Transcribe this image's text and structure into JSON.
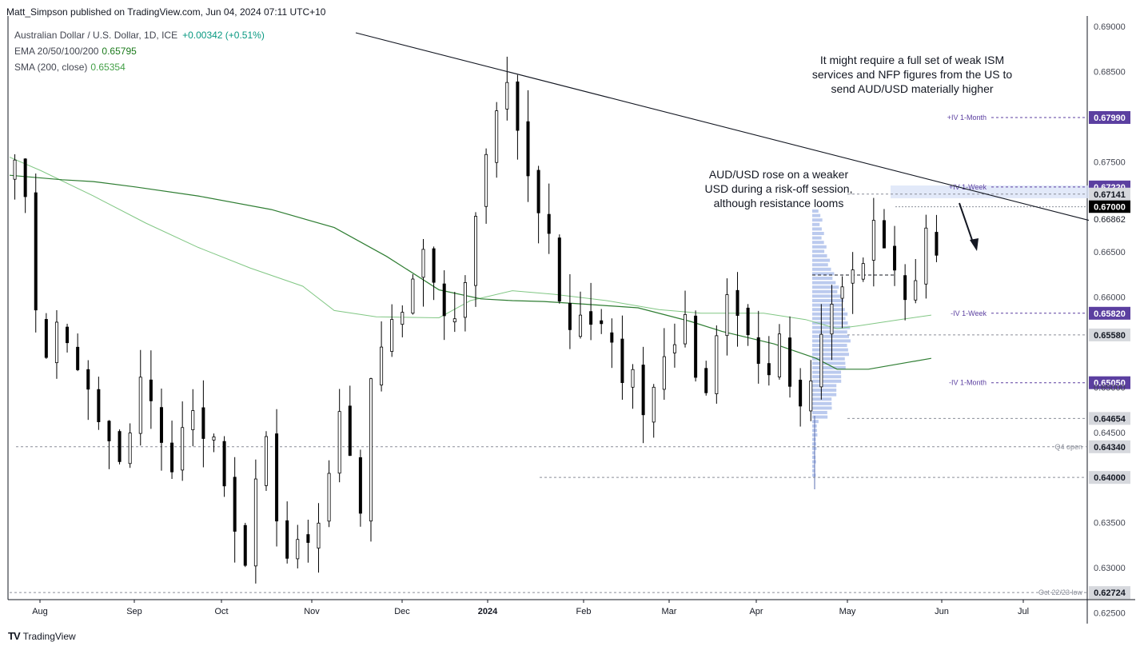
{
  "publisher": "Matt_Simpson published on TradingView.com, Jun 04, 2024 07:11 UTC+10",
  "legend": {
    "symbol": "Australian Dollar / U.S. Dollar, 1D, ICE",
    "change": "+0.00342 (+0.51%)",
    "ema_label": "EMA 20/50/100/200",
    "ema_value": "0.65795",
    "sma_label": "SMA (200, close)",
    "sma_value": "0.65354"
  },
  "footer": {
    "logo": "TV",
    "brand": "TradingView"
  },
  "colors": {
    "up": "#ffffff",
    "down": "#000000",
    "ema": "#2e7d32",
    "sma": "#81c784",
    "iv": "#5b3fa0",
    "profile": "#a4b8e8"
  },
  "chart_data": {
    "type": "candlestick",
    "x_ticks": [
      "Aug",
      "Sep",
      "Oct",
      "Nov",
      "Dec",
      "2024",
      "Feb",
      "Mar",
      "Apr",
      "May",
      "Jun",
      "Jul"
    ],
    "y_ticks": [
      "0.69000",
      "0.68500",
      "0.67500",
      "0.66500",
      "0.66000",
      "0.65000",
      "0.64500",
      "0.63500",
      "0.63000",
      "0.62500"
    ],
    "ylim": [
      0.6225,
      0.6905
    ],
    "price_levels": [
      {
        "value": 0.6799,
        "label": "0.67990",
        "tag": "+IV 1-Month",
        "style": "iv"
      },
      {
        "value": 0.6722,
        "label": "0.67220",
        "tag": "+IV 1-Week",
        "style": "iv"
      },
      {
        "value": 0.67141,
        "label": "0.67141",
        "tag": "",
        "style": "grey"
      },
      {
        "value": 0.67,
        "label": "0.67000",
        "tag": "",
        "style": "black"
      },
      {
        "value": 0.66862,
        "label": "0.66862",
        "tag": "",
        "style": "plain"
      },
      {
        "value": 0.6582,
        "label": "0.65820",
        "tag": "-IV 1-Week",
        "style": "iv"
      },
      {
        "value": 0.6558,
        "label": "0.65580",
        "tag": "",
        "style": "grey"
      },
      {
        "value": 0.6505,
        "label": "0.65050",
        "tag": "-IV 1-Month",
        "style": "iv"
      },
      {
        "value": 0.64654,
        "label": "0.64654",
        "tag": "",
        "style": "grey"
      },
      {
        "value": 0.6434,
        "label": "0.64340",
        "tag": "Q4 open",
        "style": "grey"
      },
      {
        "value": 0.64,
        "label": "0.64000",
        "tag": "",
        "style": "grey"
      },
      {
        "value": 0.62724,
        "label": "0.62724",
        "tag": "Oct 22/23 low",
        "style": "grey"
      }
    ],
    "annotations": [
      "It might require a full set of weak ISM services and NFP figures from the US to send AUD/USD materially higher",
      "AUD/USD rose on a weaker USD during a risk-off session, although resistance looms"
    ],
    "close_path": [
      [
        0,
        0.6735
      ],
      [
        1,
        0.6755
      ],
      [
        2,
        0.671
      ],
      [
        3,
        0.658
      ],
      [
        4,
        0.653
      ],
      [
        5,
        0.657
      ],
      [
        6,
        0.6545
      ],
      [
        7,
        0.652
      ],
      [
        8,
        0.6495
      ],
      [
        9,
        0.6465
      ],
      [
        10,
        0.6445
      ],
      [
        11,
        0.6415
      ],
      [
        12,
        0.6445
      ],
      [
        13,
        0.651
      ],
      [
        14,
        0.648
      ],
      [
        15,
        0.6435
      ],
      [
        16,
        0.6405
      ],
      [
        17,
        0.6455
      ],
      [
        18,
        0.648
      ],
      [
        19,
        0.6445
      ],
      [
        20,
        0.644
      ],
      [
        21,
        0.6395
      ],
      [
        22,
        0.6345
      ],
      [
        23,
        0.6305
      ],
      [
        24,
        0.6395
      ],
      [
        25,
        0.6445
      ],
      [
        26,
        0.6355
      ],
      [
        27,
        0.6305
      ],
      [
        28,
        0.6335
      ],
      [
        29,
        0.6325
      ],
      [
        30,
        0.6355
      ],
      [
        31,
        0.6405
      ],
      [
        32,
        0.6475
      ],
      [
        33,
        0.6425
      ],
      [
        34,
        0.6355
      ],
      [
        35,
        0.6505
      ],
      [
        36,
        0.6545
      ],
      [
        37,
        0.657
      ],
      [
        38,
        0.6585
      ],
      [
        39,
        0.6625
      ],
      [
        40,
        0.6655
      ],
      [
        41,
        0.6615
      ],
      [
        42,
        0.6575
      ],
      [
        43,
        0.6575
      ],
      [
        44,
        0.6615
      ],
      [
        45,
        0.6695
      ],
      [
        46,
        0.6755
      ],
      [
        47,
        0.681
      ],
      [
        48,
        0.6835
      ],
      [
        49,
        0.679
      ],
      [
        50,
        0.6735
      ],
      [
        51,
        0.6695
      ],
      [
        52,
        0.6665
      ],
      [
        53,
        0.6595
      ],
      [
        54,
        0.656
      ],
      [
        55,
        0.6585
      ],
      [
        56,
        0.6575
      ],
      [
        57,
        0.6565
      ],
      [
        58,
        0.6555
      ],
      [
        59,
        0.6505
      ],
      [
        60,
        0.6525
      ],
      [
        61,
        0.6465
      ],
      [
        62,
        0.6495
      ],
      [
        63,
        0.6535
      ],
      [
        64,
        0.6545
      ],
      [
        65,
        0.6575
      ],
      [
        66,
        0.6515
      ],
      [
        67,
        0.6495
      ],
      [
        68,
        0.6555
      ],
      [
        69,
        0.6605
      ],
      [
        70,
        0.6585
      ],
      [
        71,
        0.6555
      ],
      [
        72,
        0.6525
      ],
      [
        73,
        0.6515
      ],
      [
        74,
        0.6555
      ],
      [
        75,
        0.6505
      ],
      [
        76,
        0.6475
      ],
      [
        77,
        0.6505
      ],
      [
        78,
        0.6555
      ],
      [
        79,
        0.6595
      ],
      [
        80,
        0.6615
      ],
      [
        81,
        0.6625
      ],
      [
        82,
        0.6635
      ],
      [
        83,
        0.6685
      ],
      [
        84,
        0.6655
      ],
      [
        85,
        0.6625
      ],
      [
        86,
        0.6595
      ],
      [
        87,
        0.6615
      ],
      [
        88,
        0.6675
      ],
      [
        89,
        0.6645
      ]
    ],
    "ema_line": [
      [
        0,
        0.6735
      ],
      [
        5,
        0.673
      ],
      [
        8,
        0.6728
      ],
      [
        12,
        0.6722
      ],
      [
        18,
        0.6712
      ],
      [
        25,
        0.6697
      ],
      [
        31,
        0.6677
      ],
      [
        36,
        0.6645
      ],
      [
        41,
        0.6608
      ],
      [
        45,
        0.6598
      ],
      [
        48,
        0.6596
      ],
      [
        51,
        0.6595
      ],
      [
        55,
        0.6592
      ],
      [
        60,
        0.6588
      ],
      [
        65,
        0.6573
      ],
      [
        68,
        0.6562
      ],
      [
        73,
        0.6548
      ],
      [
        77,
        0.6532
      ],
      [
        79,
        0.652
      ],
      [
        82,
        0.652
      ],
      [
        86,
        0.6528
      ],
      [
        88,
        0.6532
      ]
    ],
    "sma_line": [
      [
        0,
        0.6755
      ],
      [
        3,
        0.674
      ],
      [
        8,
        0.6712
      ],
      [
        13,
        0.6682
      ],
      [
        18,
        0.6655
      ],
      [
        23,
        0.6632
      ],
      [
        28,
        0.6612
      ],
      [
        31,
        0.6585
      ],
      [
        35,
        0.6578
      ],
      [
        41,
        0.6577
      ],
      [
        44,
        0.6596
      ],
      [
        48,
        0.6607
      ],
      [
        52,
        0.6603
      ],
      [
        57,
        0.6596
      ],
      [
        62,
        0.6586
      ],
      [
        66,
        0.6582
      ],
      [
        72,
        0.6582
      ],
      [
        76,
        0.6575
      ],
      [
        79,
        0.6565
      ],
      [
        81,
        0.6568
      ],
      [
        85,
        0.6575
      ],
      [
        88,
        0.658
      ]
    ],
    "trendline": [
      [
        0.6892,
        0.6685
      ]
    ]
  }
}
